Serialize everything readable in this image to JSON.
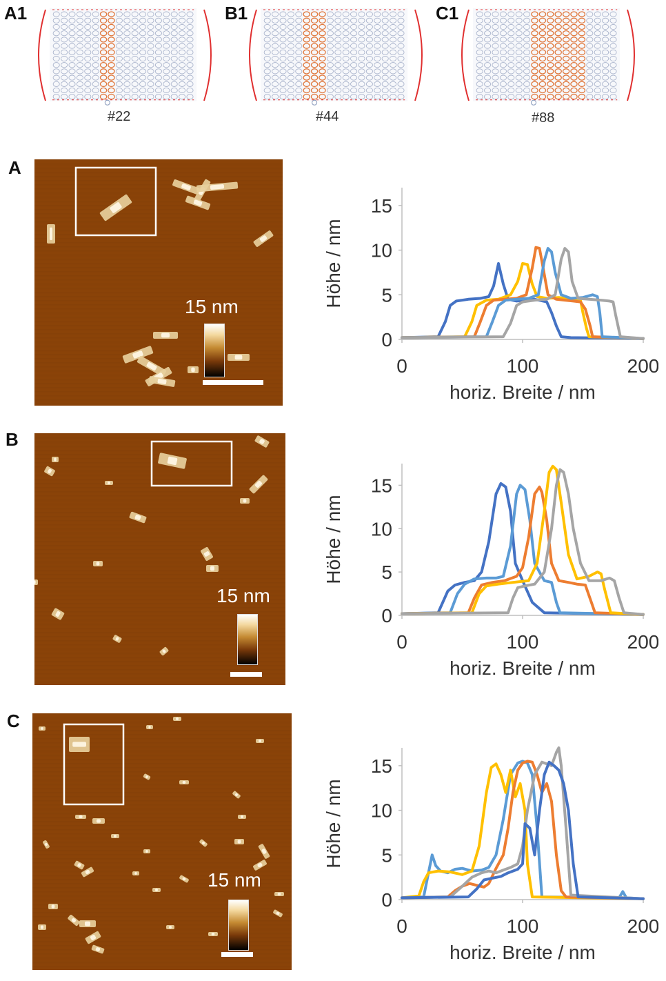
{
  "schematics": [
    {
      "letter": "A1",
      "caption": "#22"
    },
    {
      "letter": "B1",
      "caption": "#44"
    },
    {
      "letter": "C1",
      "caption": "#88"
    }
  ],
  "panels": [
    {
      "letter": "A",
      "scale_label": "15 nm"
    },
    {
      "letter": "B",
      "scale_label": "15 nm"
    },
    {
      "letter": "C",
      "scale_label": "15 nm"
    }
  ],
  "colors": {
    "afm_bg": "#8a4308",
    "blue_dark": "#4472c4",
    "blue_light": "#5b9bd5",
    "orange": "#ed7d31",
    "gold": "#ffc000",
    "gray": "#a5a5a5",
    "helix": "#aab4cc",
    "staple": "#e07a40",
    "crossover": "#e03030"
  },
  "chart_data": [
    {
      "type": "line",
      "xlabel": "horiz. Breite / nm",
      "ylabel": "Höhe / nm",
      "xlim": [
        0,
        200
      ],
      "ylim": [
        0,
        17
      ],
      "xticks": [
        0,
        100,
        200
      ],
      "yticks": [
        0,
        5,
        10,
        15
      ],
      "series": [
        {
          "color": "#4472c4",
          "x": [
            0,
            30,
            36,
            40,
            45,
            55,
            65,
            72,
            76,
            80,
            84,
            88,
            95,
            110,
            120,
            124,
            128,
            132,
            140,
            200
          ],
          "y": [
            0.2,
            0.3,
            2,
            3.8,
            4.3,
            4.5,
            4.6,
            4.8,
            6,
            8.5,
            6.2,
            4.5,
            4.3,
            4.5,
            4.2,
            3,
            1.5,
            0.3,
            0.2,
            0.1
          ]
        },
        {
          "color": "#ffc000",
          "x": [
            0,
            52,
            58,
            62,
            70,
            80,
            90,
            96,
            100,
            104,
            108,
            112,
            120,
            130,
            140,
            148,
            150,
            153,
            155,
            200
          ],
          "y": [
            0.2,
            0.3,
            2,
            3.8,
            4.4,
            4.5,
            5,
            6.5,
            8.5,
            8.4,
            6.2,
            4.8,
            4.6,
            4.7,
            4.5,
            4.4,
            3,
            1.2,
            0.3,
            0.1
          ]
        },
        {
          "color": "#ed7d31",
          "x": [
            0,
            60,
            65,
            70,
            76,
            85,
            95,
            103,
            108,
            111,
            114,
            117,
            121,
            128,
            135,
            142,
            148,
            152,
            156,
            158,
            200
          ],
          "y": [
            0.2,
            0.3,
            2,
            3.8,
            4.4,
            4.5,
            4.6,
            5,
            8,
            10.3,
            10.2,
            8,
            5,
            4.5,
            4.4,
            4.3,
            4.2,
            3.4,
            1.5,
            0.3,
            0.1
          ]
        },
        {
          "color": "#5b9bd5",
          "x": [
            0,
            70,
            75,
            80,
            86,
            95,
            105,
            113,
            118,
            121,
            124,
            127,
            132,
            140,
            150,
            158,
            162,
            164,
            166,
            200
          ],
          "y": [
            0.2,
            0.3,
            2,
            3.8,
            4.4,
            4.5,
            4.6,
            5,
            8.8,
            10.2,
            9.8,
            7.5,
            5,
            4.6,
            4.7,
            5,
            4.8,
            3,
            0.3,
            0.1
          ]
        },
        {
          "color": "#a5a5a5",
          "x": [
            0,
            84,
            90,
            95,
            100,
            110,
            120,
            127,
            132,
            135,
            138,
            141,
            146,
            155,
            165,
            172,
            175,
            177,
            181,
            200
          ],
          "y": [
            0.2,
            0.3,
            1.8,
            3.8,
            4.2,
            4.4,
            4.5,
            5,
            9,
            10.2,
            9.8,
            6.5,
            4.6,
            4.5,
            4.4,
            4.3,
            4.2,
            2.8,
            0.3,
            0.1
          ]
        }
      ]
    },
    {
      "type": "line",
      "xlabel": "horiz. Breite / nm",
      "ylabel": "Höhe / nm",
      "xlim": [
        0,
        200
      ],
      "ylim": [
        0,
        17.5
      ],
      "xticks": [
        0,
        100,
        200
      ],
      "yticks": [
        0,
        5,
        10,
        15
      ],
      "series": [
        {
          "color": "#4472c4",
          "x": [
            0,
            30,
            38,
            44,
            52,
            60,
            66,
            72,
            78,
            82,
            86,
            90,
            94,
            100,
            108,
            118,
            200
          ],
          "y": [
            0.2,
            0.3,
            2.8,
            3.5,
            3.8,
            4,
            5,
            8.5,
            14,
            15.2,
            14.8,
            12,
            6,
            4,
            1.5,
            0.3,
            0.1
          ]
        },
        {
          "color": "#5b9bd5",
          "x": [
            0,
            40,
            46,
            52,
            60,
            70,
            78,
            84,
            90,
            95,
            98,
            102,
            106,
            110,
            118,
            124,
            128,
            131,
            200
          ],
          "y": [
            0.2,
            0.3,
            2.5,
            3.6,
            4.2,
            4.3,
            4.3,
            4.5,
            8,
            14,
            15,
            14.5,
            11,
            6,
            4,
            3.8,
            1.5,
            0.3,
            0.1
          ]
        },
        {
          "color": "#ed7d31",
          "x": [
            0,
            55,
            60,
            66,
            75,
            85,
            95,
            100,
            105,
            110,
            114,
            116,
            120,
            124,
            130,
            138,
            145,
            152,
            157,
            160,
            200
          ],
          "y": [
            0.2,
            0.3,
            2,
            3.5,
            3.8,
            4,
            4.5,
            5.5,
            9,
            14,
            14.8,
            14.2,
            11,
            6,
            4,
            3.8,
            3.6,
            3.5,
            1.5,
            0.3,
            0.1
          ]
        },
        {
          "color": "#ffc000",
          "x": [
            0,
            58,
            64,
            70,
            80,
            92,
            105,
            112,
            118,
            122,
            125,
            128,
            132,
            138,
            145,
            155,
            162,
            165,
            168,
            173,
            200
          ],
          "y": [
            0.2,
            0.3,
            2.5,
            3.4,
            3.6,
            3.8,
            4,
            6,
            12,
            16.5,
            17.2,
            16.8,
            13,
            7,
            4.2,
            4.5,
            5,
            4.8,
            3,
            0.3,
            0.1
          ]
        },
        {
          "color": "#a5a5a5",
          "x": [
            0,
            88,
            92,
            96,
            102,
            110,
            118,
            124,
            128,
            131,
            134,
            138,
            142,
            148,
            155,
            165,
            172,
            176,
            180,
            184,
            200
          ],
          "y": [
            0.2,
            0.3,
            2,
            3.2,
            3.4,
            3.6,
            5,
            10,
            15,
            16.8,
            16.5,
            14,
            10,
            6,
            4,
            4,
            4.3,
            4,
            2,
            0.3,
            0.1
          ]
        }
      ]
    },
    {
      "type": "line",
      "xlabel": "horiz. Breite / nm",
      "ylabel": "Höhe / nm",
      "xlim": [
        0,
        200
      ],
      "ylim": [
        0,
        17
      ],
      "xticks": [
        0,
        100,
        200
      ],
      "yticks": [
        0,
        5,
        10,
        15
      ],
      "series": [
        {
          "color": "#5b9bd5",
          "x": [
            0,
            18,
            22,
            25,
            28,
            32,
            38,
            44,
            50,
            58,
            66,
            72,
            78,
            84,
            90,
            96,
            100,
            104,
            108,
            112,
            116,
            180,
            183,
            186,
            200
          ],
          "y": [
            0.2,
            0.3,
            3,
            5,
            3.8,
            3.2,
            3,
            3.4,
            3.5,
            3.2,
            3.3,
            3.6,
            5,
            9,
            14,
            15.3,
            15.5,
            15.3,
            14,
            8,
            0.3,
            0.2,
            0.9,
            0.2,
            0.1
          ]
        },
        {
          "color": "#ffc000",
          "x": [
            0,
            14,
            18,
            22,
            30,
            40,
            50,
            58,
            64,
            70,
            74,
            78,
            82,
            86,
            90,
            94,
            98,
            102,
            104,
            108,
            200
          ],
          "y": [
            0.2,
            0.4,
            2,
            3,
            3.2,
            3.1,
            2.8,
            3.2,
            6,
            12,
            14.8,
            15.2,
            14,
            12,
            14.5,
            11.5,
            13,
            10,
            4,
            0.3,
            0.1
          ]
        },
        {
          "color": "#ed7d31",
          "x": [
            0,
            38,
            44,
            50,
            56,
            62,
            68,
            72,
            78,
            84,
            88,
            92,
            96,
            100,
            104,
            108,
            112,
            116,
            120,
            124,
            128,
            132,
            136,
            200
          ],
          "y": [
            0.2,
            0.3,
            1,
            1.5,
            1.8,
            1.6,
            1.4,
            1.8,
            3.5,
            5,
            8,
            12,
            14.5,
            15.3,
            15.5,
            15.4,
            14,
            12,
            13,
            11,
            5,
            1,
            0.3,
            0.1
          ]
        },
        {
          "color": "#a5a5a5",
          "x": [
            0,
            40,
            50,
            58,
            66,
            72,
            78,
            84,
            90,
            96,
            100,
            104,
            110,
            116,
            120,
            124,
            128,
            130,
            132,
            136,
            140,
            200
          ],
          "y": [
            0.2,
            0.3,
            1.5,
            2.5,
            3,
            3.2,
            3,
            3.3,
            3.6,
            4,
            6,
            10,
            14,
            15.4,
            15.2,
            15,
            16.5,
            17,
            15,
            8,
            0.5,
            0.1
          ]
        },
        {
          "color": "#4472c4",
          "x": [
            0,
            55,
            62,
            68,
            75,
            82,
            88,
            92,
            96,
            100,
            102,
            106,
            110,
            114,
            118,
            122,
            126,
            130,
            134,
            138,
            142,
            146,
            200
          ],
          "y": [
            0.2,
            0.3,
            1.2,
            2.2,
            2.4,
            2.6,
            3,
            3.2,
            3.4,
            4,
            8.5,
            8,
            5,
            10,
            14,
            15.4,
            15,
            14.5,
            13,
            10,
            4,
            0.3,
            0.1
          ]
        }
      ]
    }
  ]
}
